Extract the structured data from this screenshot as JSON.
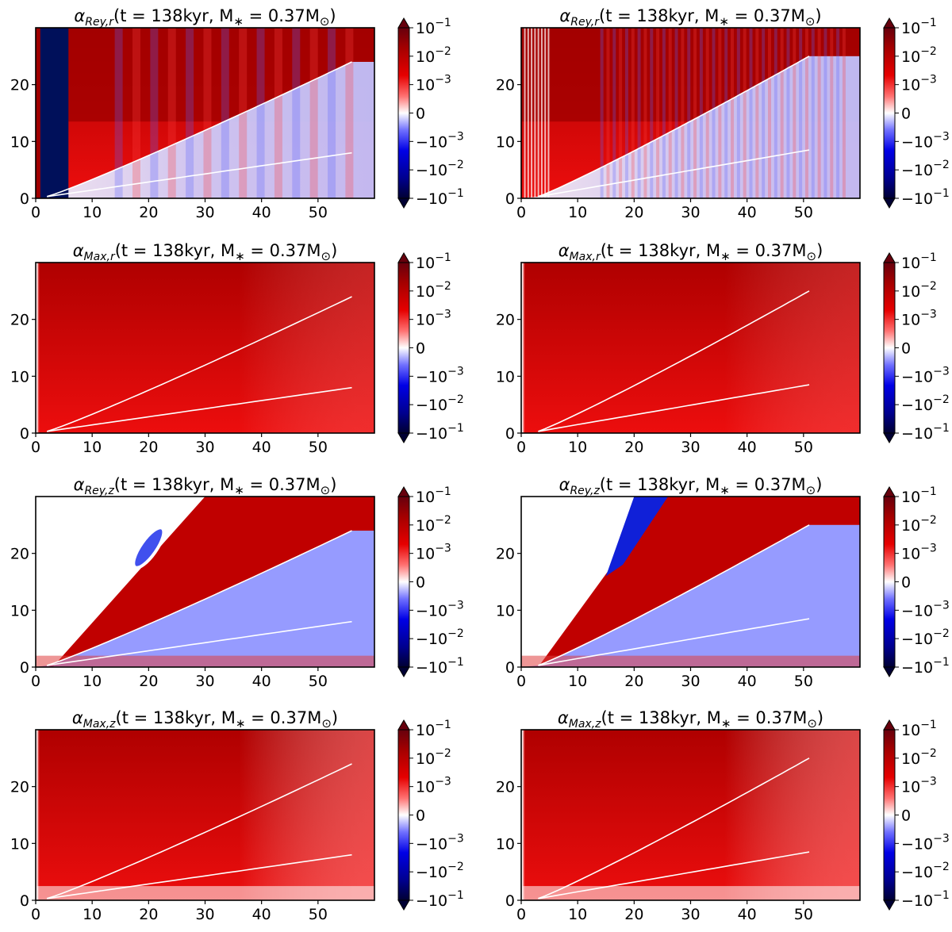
{
  "chart_data": [
    {
      "type": "heatmap",
      "title": "α_{Rey,r}(t = 138kyr, M_* = 0.37M_⊙)",
      "title_parts": {
        "sym": "α",
        "sub": "Rey,r",
        "expr": "(t = 138kyr, M",
        "star": "∗",
        "rest": " = 0.37M",
        "sun": "⊙",
        "close": ")"
      },
      "xlabel": "",
      "ylabel": "",
      "xlim": [
        0,
        60
      ],
      "ylim": [
        0,
        30
      ],
      "x_ticks": [
        0,
        10,
        20,
        30,
        40,
        50
      ],
      "y_ticks": [
        0,
        10,
        20
      ],
      "colorbar_ticks": [
        "10^-1",
        "10^-2",
        "10^-3",
        "0",
        "-10^-3",
        "-10^-2",
        "-10^-1"
      ],
      "scale": "symlog",
      "contour_lines": [
        {
          "x_end": 56,
          "y_end": 24
        },
        {
          "x_end": 56,
          "y_end": 8
        }
      ]
    },
    {
      "type": "heatmap",
      "title": "α_{Rey,r}(t = 138kyr, M_* = 0.37M_⊙)",
      "title_parts": {
        "sym": "α",
        "sub": "Rey,r",
        "expr": "(t = 138kyr, M",
        "star": "∗",
        "rest": " = 0.37M",
        "sun": "⊙",
        "close": ")"
      },
      "xlabel": "",
      "ylabel": "",
      "xlim": [
        0,
        60
      ],
      "ylim": [
        0,
        30
      ],
      "x_ticks": [
        0,
        10,
        20,
        30,
        40,
        50
      ],
      "y_ticks": [
        0,
        10,
        20
      ],
      "colorbar_ticks": [
        "10^-1",
        "10^-2",
        "10^-3",
        "0",
        "-10^-3",
        "-10^-2",
        "-10^-1"
      ],
      "scale": "symlog",
      "contour_lines": [
        {
          "x_end": 51,
          "y_end": 25
        },
        {
          "x_end": 51,
          "y_end": 8.5
        }
      ]
    },
    {
      "type": "heatmap",
      "title": "α_{Max,r}(t = 138kyr, M_* = 0.37M_⊙)",
      "title_parts": {
        "sym": "α",
        "sub": "Max,r",
        "expr": "(t = 138kyr, M",
        "star": "∗",
        "rest": " = 0.37M",
        "sun": "⊙",
        "close": ")"
      },
      "xlabel": "",
      "ylabel": "",
      "xlim": [
        0,
        60
      ],
      "ylim": [
        0,
        30
      ],
      "x_ticks": [
        0,
        10,
        20,
        30,
        40,
        50
      ],
      "y_ticks": [
        0,
        10,
        20
      ],
      "colorbar_ticks": [
        "10^-1",
        "10^-2",
        "10^-3",
        "0",
        "-10^-3",
        "-10^-2",
        "-10^-1"
      ],
      "scale": "symlog",
      "contour_lines": [
        {
          "x_end": 56,
          "y_end": 24
        },
        {
          "x_end": 56,
          "y_end": 8
        }
      ]
    },
    {
      "type": "heatmap",
      "title": "α_{Max,r}(t = 138kyr, M_* = 0.37M_⊙)",
      "title_parts": {
        "sym": "α",
        "sub": "Max,r",
        "expr": "(t = 138kyr, M",
        "star": "∗",
        "rest": " = 0.37M",
        "sun": "⊙",
        "close": ")"
      },
      "xlabel": "",
      "ylabel": "",
      "xlim": [
        0,
        60
      ],
      "ylim": [
        0,
        30
      ],
      "x_ticks": [
        0,
        10,
        20,
        30,
        40,
        50
      ],
      "y_ticks": [
        0,
        10,
        20
      ],
      "colorbar_ticks": [
        "10^-1",
        "10^-2",
        "10^-3",
        "0",
        "-10^-3",
        "-10^-2",
        "-10^-1"
      ],
      "scale": "symlog",
      "contour_lines": [
        {
          "x_end": 51,
          "y_end": 25
        },
        {
          "x_end": 51,
          "y_end": 8.5
        }
      ]
    },
    {
      "type": "heatmap",
      "title": "α_{Rey,z}(t = 138kyr, M_* = 0.37M_⊙)",
      "title_parts": {
        "sym": "α",
        "sub": "Rey,z",
        "expr": "(t = 138kyr, M",
        "star": "∗",
        "rest": " = 0.37M",
        "sun": "⊙",
        "close": ")"
      },
      "xlabel": "",
      "ylabel": "",
      "xlim": [
        0,
        60
      ],
      "ylim": [
        0,
        30
      ],
      "x_ticks": [
        0,
        10,
        20,
        30,
        40,
        50
      ],
      "y_ticks": [
        0,
        10,
        20
      ],
      "colorbar_ticks": [
        "10^-1",
        "10^-2",
        "10^-3",
        "0",
        "-10^-3",
        "-10^-2",
        "-10^-1"
      ],
      "scale": "symlog",
      "contour_lines": [
        {
          "x_end": 56,
          "y_end": 24
        },
        {
          "x_end": 56,
          "y_end": 8
        }
      ]
    },
    {
      "type": "heatmap",
      "title": "α_{Rey,z}(t = 138kyr, M_* = 0.37M_⊙)",
      "title_parts": {
        "sym": "α",
        "sub": "Rey,z",
        "expr": "(t = 138kyr, M",
        "star": "∗",
        "rest": " = 0.37M",
        "sun": "⊙",
        "close": ")"
      },
      "xlabel": "",
      "ylabel": "",
      "xlim": [
        0,
        60
      ],
      "ylim": [
        0,
        30
      ],
      "x_ticks": [
        0,
        10,
        20,
        30,
        40,
        50
      ],
      "y_ticks": [
        0,
        10,
        20
      ],
      "colorbar_ticks": [
        "10^-1",
        "10^-2",
        "10^-3",
        "0",
        "-10^-3",
        "-10^-2",
        "-10^-1"
      ],
      "scale": "symlog",
      "contour_lines": [
        {
          "x_end": 51,
          "y_end": 25
        },
        {
          "x_end": 51,
          "y_end": 8.5
        }
      ]
    },
    {
      "type": "heatmap",
      "title": "α_{Max,z}(t = 138kyr, M_* = 0.37M_⊙)",
      "title_parts": {
        "sym": "α",
        "sub": "Max,z",
        "expr": "(t = 138kyr, M",
        "star": "∗",
        "rest": " = 0.37M",
        "sun": "⊙",
        "close": ")"
      },
      "xlabel": "",
      "ylabel": "",
      "xlim": [
        0,
        60
      ],
      "ylim": [
        0,
        30
      ],
      "x_ticks": [
        0,
        10,
        20,
        30,
        40,
        50
      ],
      "y_ticks": [
        0,
        10,
        20
      ],
      "colorbar_ticks": [
        "10^-1",
        "10^-2",
        "10^-3",
        "0",
        "-10^-3",
        "-10^-2",
        "-10^-1"
      ],
      "scale": "symlog",
      "contour_lines": [
        {
          "x_end": 56,
          "y_end": 24
        },
        {
          "x_end": 56,
          "y_end": 8
        }
      ]
    },
    {
      "type": "heatmap",
      "title": "α_{Max,z}(t = 138kyr, M_* = 0.37M_⊙)",
      "title_parts": {
        "sym": "α",
        "sub": "Max,z",
        "expr": "(t = 138kyr, M",
        "star": "∗",
        "rest": " = 0.37M",
        "sun": "⊙",
        "close": ")"
      },
      "xlabel": "",
      "ylabel": "",
      "xlim": [
        0,
        60
      ],
      "ylim": [
        0,
        30
      ],
      "x_ticks": [
        0,
        10,
        20,
        30,
        40,
        50
      ],
      "y_ticks": [
        0,
        10,
        20
      ],
      "colorbar_ticks": [
        "10^-1",
        "10^-2",
        "10^-3",
        "0",
        "-10^-3",
        "-10^-2",
        "-10^-1"
      ],
      "scale": "symlog",
      "contour_lines": [
        {
          "x_end": 51,
          "y_end": 25
        },
        {
          "x_end": 51,
          "y_end": 8.5
        }
      ]
    }
  ]
}
